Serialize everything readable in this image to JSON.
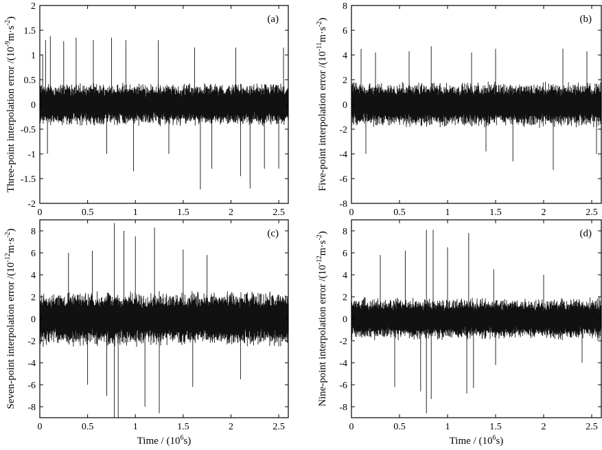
{
  "chart_data": [
    {
      "type": "line",
      "panel": "(a)",
      "ylabel_main": "Three-point interpolation error /(10",
      "ylabel_exp1": "-9",
      "ylabel_unit": "m·s",
      "ylabel_exp2": "-2",
      "ylabel_close": ")",
      "xlim": [
        0,
        2.6
      ],
      "ylim": [
        -2,
        2
      ],
      "xticks": [
        "0",
        "0.5",
        "1",
        "1.5",
        "2",
        "2.5"
      ],
      "yticks": [
        "-2",
        "-1.5",
        "-1",
        "-0.5",
        "0",
        "0.5",
        "1",
        "1.5",
        "2"
      ],
      "series": [
        {
          "noise_amplitude": 0.45,
          "spikes": [
            {
              "x": 0.03,
              "y": 1.0
            },
            {
              "x": 0.06,
              "y": 1.3
            },
            {
              "x": 0.11,
              "y": 1.38
            },
            {
              "x": 0.25,
              "y": 1.28
            },
            {
              "x": 0.38,
              "y": 1.35
            },
            {
              "x": 0.56,
              "y": 1.3
            },
            {
              "x": 0.75,
              "y": 1.35
            },
            {
              "x": 0.9,
              "y": 1.3
            },
            {
              "x": 1.24,
              "y": 1.3
            },
            {
              "x": 1.62,
              "y": 1.15
            },
            {
              "x": 2.05,
              "y": 1.15
            },
            {
              "x": 2.55,
              "y": 1.15
            },
            {
              "x": 0.08,
              "y": -1.0
            },
            {
              "x": 0.7,
              "y": -1.0
            },
            {
              "x": 0.98,
              "y": -1.35
            },
            {
              "x": 1.35,
              "y": -1.0
            },
            {
              "x": 1.68,
              "y": -1.72
            },
            {
              "x": 1.8,
              "y": -1.3
            },
            {
              "x": 2.1,
              "y": -1.45
            },
            {
              "x": 2.2,
              "y": -1.7
            },
            {
              "x": 2.35,
              "y": -1.3
            },
            {
              "x": 2.5,
              "y": -1.3
            }
          ]
        }
      ]
    },
    {
      "type": "line",
      "panel": "(b)",
      "ylabel_main": "Five-point interpolation error /(10",
      "ylabel_exp1": "-11",
      "ylabel_unit": "m·s",
      "ylabel_exp2": "-2",
      "ylabel_close": ")",
      "xlim": [
        0,
        2.6
      ],
      "ylim": [
        -8,
        8
      ],
      "xticks": [
        "0",
        "0.5",
        "1",
        "1.5",
        "2",
        "2.5"
      ],
      "yticks": [
        "-8",
        "-6",
        "-4",
        "-2",
        "0",
        "2",
        "4",
        "6",
        "8"
      ],
      "series": [
        {
          "noise_amplitude": 1.9,
          "spikes": [
            {
              "x": 0.1,
              "y": 4.5
            },
            {
              "x": 0.25,
              "y": 4.2
            },
            {
              "x": 0.6,
              "y": 4.3
            },
            {
              "x": 0.83,
              "y": 4.7
            },
            {
              "x": 1.25,
              "y": 4.2
            },
            {
              "x": 1.5,
              "y": 4.5
            },
            {
              "x": 2.2,
              "y": 4.5
            },
            {
              "x": 2.45,
              "y": 4.3
            },
            {
              "x": 0.15,
              "y": -4.0
            },
            {
              "x": 1.4,
              "y": -3.8
            },
            {
              "x": 1.68,
              "y": -4.6
            },
            {
              "x": 2.1,
              "y": -5.3
            },
            {
              "x": 2.55,
              "y": -4.0
            }
          ]
        }
      ]
    },
    {
      "type": "line",
      "panel": "(c)",
      "ylabel_main": "Seven-point interpolation error /(10",
      "ylabel_exp1": "-12",
      "ylabel_unit": "m·s",
      "ylabel_exp2": "-2",
      "ylabel_close": ")",
      "xlim": [
        0,
        2.6
      ],
      "ylim": [
        -9,
        9
      ],
      "xticks": [
        "0",
        "0.5",
        "1",
        "1.5",
        "2",
        "2.5"
      ],
      "yticks": [
        "-8",
        "-6",
        "-4",
        "-2",
        "0",
        "2",
        "4",
        "6",
        "8"
      ],
      "series": [
        {
          "noise_amplitude": 2.6,
          "spikes": [
            {
              "x": 0.3,
              "y": 6.0
            },
            {
              "x": 0.55,
              "y": 6.2
            },
            {
              "x": 0.78,
              "y": 8.7
            },
            {
              "x": 0.88,
              "y": 8.0
            },
            {
              "x": 1.0,
              "y": 7.5
            },
            {
              "x": 1.2,
              "y": 8.3
            },
            {
              "x": 1.5,
              "y": 6.3
            },
            {
              "x": 1.75,
              "y": 5.8
            },
            {
              "x": 0.5,
              "y": -6.0
            },
            {
              "x": 0.7,
              "y": -7.0
            },
            {
              "x": 0.78,
              "y": -9.0
            },
            {
              "x": 0.82,
              "y": -9.0
            },
            {
              "x": 1.1,
              "y": -8.0
            },
            {
              "x": 1.25,
              "y": -8.6
            },
            {
              "x": 1.6,
              "y": -6.2
            },
            {
              "x": 2.1,
              "y": -5.5
            }
          ]
        }
      ]
    },
    {
      "type": "line",
      "panel": "(d)",
      "ylabel_main": "Nine-point interpolation error /(10",
      "ylabel_exp1": "-12",
      "ylabel_unit": "m·s",
      "ylabel_exp2": "-2",
      "ylabel_close": ")",
      "xlim": [
        0,
        2.6
      ],
      "ylim": [
        -9,
        9
      ],
      "xticks": [
        "0",
        "0.5",
        "1",
        "1.5",
        "2",
        "2.5"
      ],
      "yticks": [
        "-8",
        "-6",
        "-4",
        "-2",
        "0",
        "2",
        "4",
        "6",
        "8"
      ],
      "series": [
        {
          "noise_amplitude": 2.0,
          "spikes": [
            {
              "x": 0.3,
              "y": 5.8
            },
            {
              "x": 0.56,
              "y": 6.2
            },
            {
              "x": 0.78,
              "y": 8.1
            },
            {
              "x": 0.85,
              "y": 8.1
            },
            {
              "x": 1.0,
              "y": 6.5
            },
            {
              "x": 1.22,
              "y": 7.8
            },
            {
              "x": 1.48,
              "y": 4.5
            },
            {
              "x": 2.0,
              "y": 4.0
            },
            {
              "x": 0.45,
              "y": -6.2
            },
            {
              "x": 0.72,
              "y": -6.6
            },
            {
              "x": 0.78,
              "y": -8.6
            },
            {
              "x": 0.83,
              "y": -7.3
            },
            {
              "x": 1.2,
              "y": -6.8
            },
            {
              "x": 1.27,
              "y": -6.3
            },
            {
              "x": 1.5,
              "y": -4.2
            },
            {
              "x": 2.4,
              "y": -4.0
            }
          ]
        }
      ]
    }
  ],
  "xlabel_main": "Time / (10",
  "xlabel_exp": "6",
  "xlabel_close": "s)"
}
